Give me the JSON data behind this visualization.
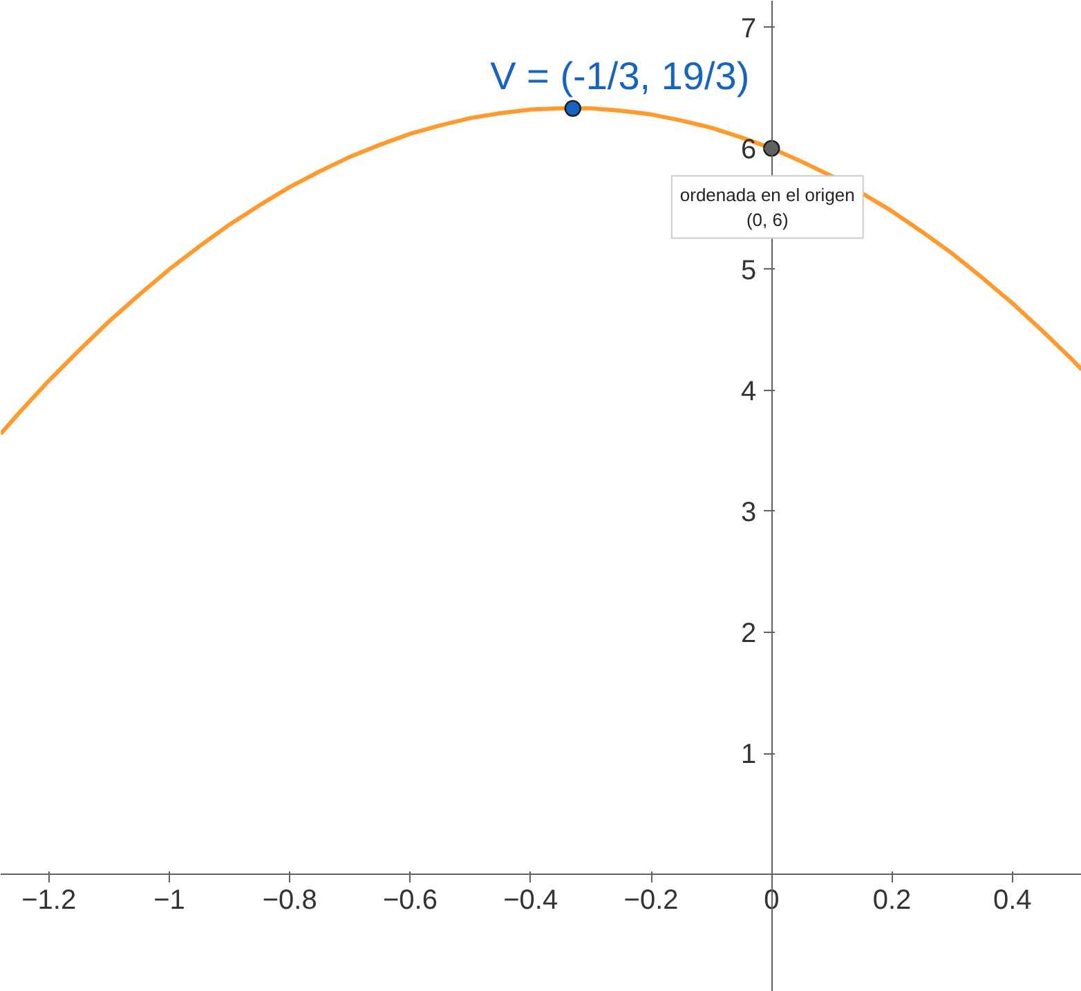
{
  "chart_data": {
    "type": "line",
    "x": [
      -1.28,
      -1.25,
      -1.2,
      -1.15,
      -1.1,
      -1.05,
      -1.0,
      -0.95,
      -0.9,
      -0.85,
      -0.8,
      -0.75,
      -0.7,
      -0.65,
      -0.6,
      -0.55,
      -0.5,
      -0.45,
      -0.4,
      -0.35,
      -0.3,
      -0.25,
      -0.2,
      -0.15,
      -0.1,
      -0.05,
      0,
      0.05,
      0.1,
      0.15,
      0.2,
      0.25,
      0.3,
      0.35,
      0.4,
      0.45,
      0.5,
      0.515
    ],
    "series": [
      {
        "color": "#ff9a2e",
        "values": [
          3.64,
          3.81,
          4.08,
          4.33,
          4.57,
          4.79,
          5.0,
          5.19,
          5.37,
          5.53,
          5.68,
          5.81,
          5.93,
          6.03,
          6.12,
          6.19,
          6.25,
          6.29,
          6.32,
          6.33,
          6.33,
          6.31,
          6.28,
          6.23,
          6.17,
          6.09,
          6.0,
          5.89,
          5.77,
          5.63,
          5.48,
          5.31,
          5.13,
          4.93,
          4.72,
          4.49,
          4.25,
          4.17
        ]
      },
      {
        "type": "scatter",
        "marker": "circle",
        "color": "#1565c0",
        "x": [
          -0.33
        ],
        "values": [
          6.33
        ]
      },
      {
        "type": "scatter",
        "marker": "circle",
        "color": "#616161",
        "x": [
          0
        ],
        "values": [
          6
        ]
      }
    ],
    "annotations": [
      {
        "text": "V = (-1/3, 19/3)",
        "x": -0.33,
        "y": 6.33
      },
      {
        "text": "ordenada en el origen\n(0, 6)",
        "x": 0,
        "y": 6
      }
    ],
    "xlim": [
      -1.28,
      0.515
    ],
    "ylim": [
      -0.97,
      7.22
    ],
    "xticks": [
      {
        "value": -1.2,
        "label": "−1.2"
      },
      {
        "value": -1,
        "label": "−1"
      },
      {
        "value": -0.8,
        "label": "−0.8"
      },
      {
        "value": -0.6,
        "label": "−0.6"
      },
      {
        "value": -0.4,
        "label": "−0.4"
      },
      {
        "value": -0.2,
        "label": "−0.2"
      },
      0,
      0.2,
      0.4
    ],
    "yticks": [
      1,
      2,
      3,
      4,
      5,
      6,
      7
    ]
  }
}
